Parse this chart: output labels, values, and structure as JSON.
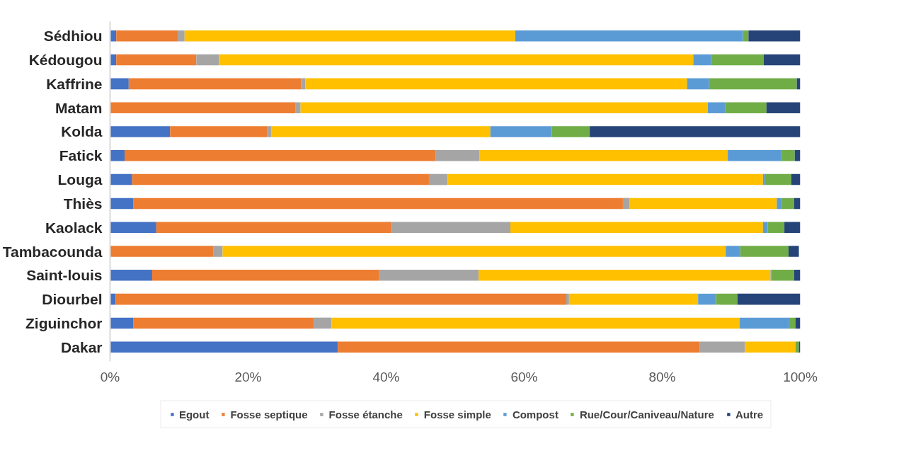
{
  "chart_data": {
    "type": "bar",
    "orientation": "horizontal",
    "stacked": true,
    "categories": [
      "Sédhiou",
      "Kédougou",
      "Kaffrine",
      "Matam",
      "Kolda",
      "Fatick",
      "Louga",
      "Thiès",
      "Kaolack",
      "Tambacounda",
      "Saint-louis",
      "Diourbel",
      "Ziguinchor",
      "Dakar"
    ],
    "series": [
      {
        "name": "Egout",
        "color": "#4472c4",
        "values": [
          0.9,
          0.9,
          2.7,
          0,
          8.7,
          2.1,
          3.2,
          3.4,
          6.7,
          null,
          6.1,
          0.8,
          3.4,
          33.0
        ]
      },
      {
        "name": "Fosse septique",
        "color": "#ed7d31",
        "values": [
          8.9,
          11.6,
          25.0,
          26.9,
          14.1,
          45.1,
          43.0,
          70.9,
          34.1,
          15.0,
          32.9,
          65.3,
          26.1,
          52.4
        ]
      },
      {
        "name": "Fosse étanche",
        "color": "#a5a5a5",
        "values": [
          1.0,
          3.3,
          0.6,
          0.7,
          0.6,
          6.3,
          2.7,
          1.0,
          17.2,
          1.3,
          14.4,
          0.4,
          2.6,
          6.6
        ]
      },
      {
        "name": "Fosse simple",
        "color": "#ffc000",
        "values": [
          47.9,
          68.7,
          55.3,
          59.0,
          31.7,
          36.0,
          45.7,
          21.3,
          36.6,
          72.9,
          42.3,
          18.7,
          59.1,
          7.3
        ]
      },
      {
        "name": "Compost",
        "color": "#5b9bd5",
        "values": [
          33.0,
          2.6,
          3.2,
          2.5,
          8.9,
          7.8,
          0.3,
          0.7,
          0.7,
          2.1,
          0.1,
          2.6,
          7.2,
          0
        ]
      },
      {
        "name": "Rue/Cour/Caniveau/Nature",
        "color": "#70ad47",
        "values": [
          0.8,
          7.6,
          12.7,
          6.0,
          5.5,
          1.9,
          3.8,
          1.8,
          2.4,
          7.0,
          3.3,
          3.1,
          0.9,
          0.5
        ]
      },
      {
        "name": "Autre",
        "color": "#264478",
        "values": [
          7.5,
          5.3,
          0.5,
          4.9,
          30.5,
          0.8,
          1.3,
          0.9,
          2.3,
          1.5,
          0.9,
          9.1,
          0.7,
          0.2
        ]
      }
    ],
    "xlim": [
      0,
      100
    ],
    "xticks": [
      {
        "value": 0,
        "label": "0%"
      },
      {
        "value": 20,
        "label": "20%"
      },
      {
        "value": 40,
        "label": "40%"
      },
      {
        "value": 60,
        "label": "60%"
      },
      {
        "value": 80,
        "label": "80%"
      },
      {
        "value": 100,
        "label": "100%"
      }
    ],
    "grid": false,
    "legend": "bottom"
  }
}
